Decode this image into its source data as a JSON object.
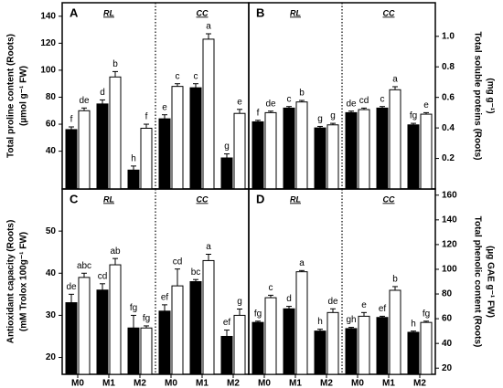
{
  "chart_data": [
    {
      "type": "bar",
      "panel_label": "A",
      "axis_side": "left",
      "group_labels": [
        "RL",
        "CC"
      ],
      "ylabel": [
        "Total proline content (Roots)",
        "(µmol g⁻¹ FW)"
      ],
      "ylim": [
        12,
        150
      ],
      "yticks": [
        40,
        60,
        80,
        100,
        120,
        140
      ],
      "colors": [
        "#000000",
        "#ffffff"
      ],
      "values": [
        56,
        70,
        75,
        95,
        26,
        57,
        64,
        88,
        87,
        123,
        35,
        68
      ],
      "errors": [
        2,
        2,
        3,
        4,
        3,
        3,
        3,
        2,
        3,
        4,
        3,
        3
      ],
      "annotations": [
        "f",
        "de",
        "d",
        "b",
        "h",
        "f",
        "e",
        "c",
        "c",
        "a",
        "g",
        "e"
      ]
    },
    {
      "type": "bar",
      "panel_label": "B",
      "axis_side": "right",
      "group_labels": [
        "RL",
        "CC"
      ],
      "ylabel": [
        "Total soluble proteins (Roots)",
        "(mg g⁻¹)"
      ],
      "ylim": [
        0,
        1.22
      ],
      "yticks": [
        0.2,
        0.4,
        0.6,
        0.8,
        {
          "value": 1,
          "label": "1.0"
        }
      ],
      "colors": [
        "#000000",
        "#ffffff"
      ],
      "values": [
        0.44,
        0.5,
        0.53,
        0.57,
        0.4,
        0.42,
        0.5,
        0.52,
        0.53,
        0.65,
        0.42,
        0.49
      ],
      "errors": [
        0.01,
        0.01,
        0.01,
        0.01,
        0.01,
        0.01,
        0.01,
        0.01,
        0.01,
        0.02,
        0.01,
        0.01
      ],
      "annotations": [
        "f",
        "de",
        "c",
        "b",
        "g",
        "g",
        "de",
        "cd",
        "c",
        "a",
        "fg",
        "e"
      ]
    },
    {
      "type": "bar",
      "panel_label": "C",
      "axis_side": "left",
      "group_labels": [
        "RL",
        "CC"
      ],
      "ylabel": [
        "Antioxidant capacity (Roots)",
        "(mM Trolox 100g⁻¹ FW)"
      ],
      "ylim": [
        16,
        60
      ],
      "yticks": [
        20,
        30,
        40,
        50
      ],
      "colors": [
        "#000000",
        "#ffffff"
      ],
      "x_labels": [
        "M0",
        "M1",
        "M2",
        "M0",
        "M1",
        "M2"
      ],
      "values": [
        33,
        39,
        36,
        42,
        27,
        27,
        31,
        37,
        38,
        43,
        25,
        30
      ],
      "errors": [
        2,
        1,
        1.5,
        1.5,
        3,
        0.5,
        1.5,
        4,
        0.5,
        1.5,
        1.5,
        1.5
      ],
      "annotations": [
        "de",
        "abc",
        "cd",
        "ab",
        "fg",
        "fg",
        "ef",
        "cd",
        "bc",
        "a",
        "ef",
        "g"
      ]
    },
    {
      "type": "bar",
      "panel_label": "D",
      "axis_side": "right",
      "group_labels": [
        "RL",
        "CC"
      ],
      "ylabel": [
        "Total phenolic content (Roots)",
        "(µg GAE g⁻¹ FW)"
      ],
      "ylim": [
        15,
        165
      ],
      "yticks": [
        20,
        40,
        60,
        80,
        100,
        120,
        140,
        160
      ],
      "colors": [
        "#000000",
        "#ffffff"
      ],
      "x_labels": [
        "M0",
        "M1",
        "M2",
        "M0",
        "M1",
        "M2"
      ],
      "values": [
        57,
        77,
        68,
        98,
        50,
        65,
        52,
        62,
        61,
        83,
        49,
        57
      ],
      "errors": [
        1,
        2,
        2,
        1,
        1.5,
        3,
        1,
        3,
        1,
        3,
        1,
        1
      ],
      "annotations": [
        "fg",
        "c",
        "d",
        "a",
        "h",
        "de",
        "gh",
        "e",
        "ef",
        "b",
        "h",
        "fg"
      ]
    }
  ]
}
